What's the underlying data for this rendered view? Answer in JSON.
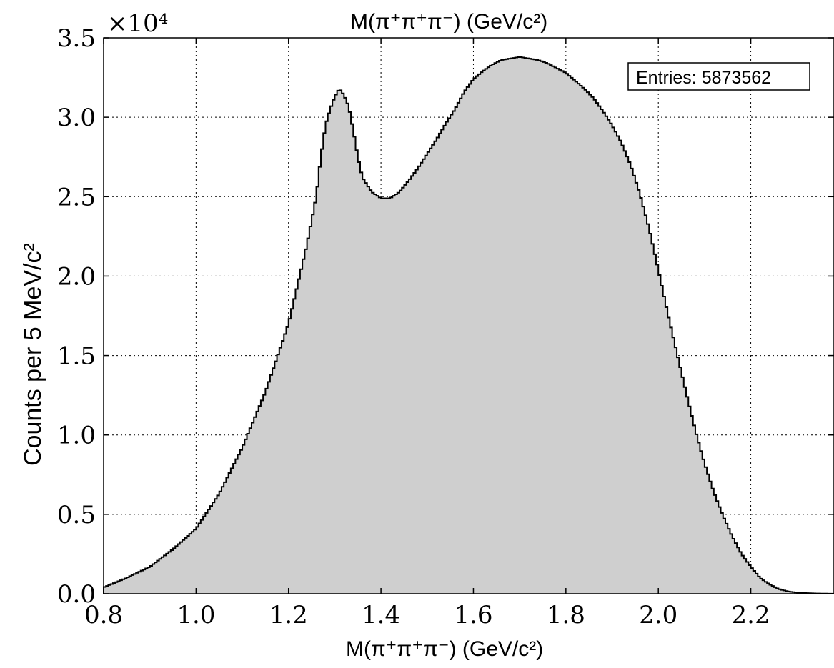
{
  "chart_data": {
    "type": "area",
    "title": "M(π⁺π⁺π⁻) (GeV/c²)",
    "xlabel": "M(π⁺π⁺π⁻) (GeV/c²)",
    "ylabel": "Counts per 5 MeV/c²",
    "y_multiplier": "×10⁴",
    "xlim": [
      0.8,
      2.38
    ],
    "ylim": [
      0,
      35000
    ],
    "grid": true,
    "bin_width": 0.005,
    "x_ticks": [
      "0.8",
      "1.0",
      "1.2",
      "1.4",
      "1.6",
      "1.8",
      "2.0",
      "2.2"
    ],
    "y_ticks": [
      "0.0",
      "0.5",
      "1.0",
      "1.5",
      "2.0",
      "2.5",
      "3.0",
      "3.5"
    ],
    "annotation": "Entries: 5873562",
    "annotation_position": "top-right",
    "fill_color": "#cfcfcf",
    "line_color": "#000000",
    "series": [
      {
        "x": [
          0.8,
          0.85,
          0.9,
          0.95,
          1.0,
          1.05,
          1.1,
          1.15,
          1.2,
          1.22,
          1.24,
          1.26,
          1.27,
          1.28,
          1.29,
          1.3,
          1.31,
          1.32,
          1.33,
          1.34,
          1.35,
          1.36,
          1.38,
          1.4,
          1.42,
          1.44,
          1.46,
          1.48,
          1.5,
          1.52,
          1.54,
          1.56,
          1.58,
          1.6,
          1.62,
          1.64,
          1.66,
          1.68,
          1.7,
          1.72,
          1.74,
          1.76,
          1.78,
          1.8,
          1.82,
          1.84,
          1.86,
          1.88,
          1.9,
          1.92,
          1.94,
          1.96,
          1.98,
          2.0,
          2.02,
          2.04,
          2.06,
          2.08,
          2.1,
          2.12,
          2.14,
          2.16,
          2.18,
          2.2,
          2.22,
          2.24,
          2.26,
          2.28,
          2.3,
          2.32,
          2.34,
          2.36,
          2.38
        ],
        "y": [
          400,
          1000,
          1700,
          2800,
          4100,
          6300,
          9200,
          12700,
          17000,
          19500,
          22000,
          25000,
          27500,
          29500,
          30500,
          31300,
          31800,
          31400,
          30700,
          29200,
          27500,
          26200,
          25300,
          24900,
          24900,
          25300,
          26000,
          26800,
          27700,
          28600,
          29600,
          30500,
          31600,
          32400,
          32900,
          33300,
          33600,
          33700,
          33800,
          33700,
          33600,
          33400,
          33100,
          32800,
          32300,
          31800,
          31200,
          30400,
          29500,
          28400,
          27000,
          25200,
          23000,
          20400,
          17700,
          15200,
          12700,
          10300,
          8200,
          6400,
          4900,
          3600,
          2500,
          1700,
          1000,
          600,
          300,
          150,
          70,
          40,
          20,
          10,
          0
        ]
      }
    ]
  }
}
